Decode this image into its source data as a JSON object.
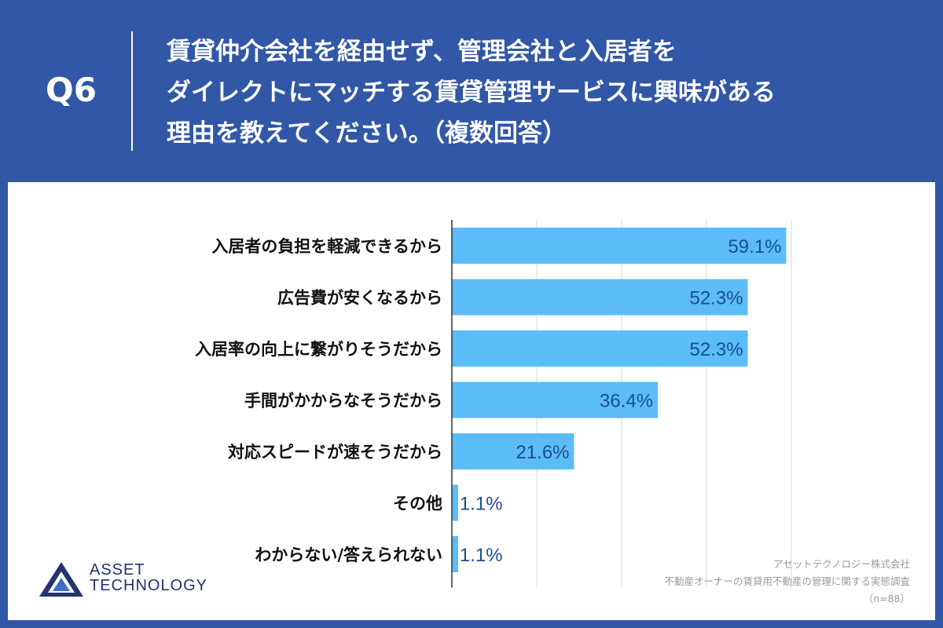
{
  "header": {
    "question_label": "Q6",
    "question_lines": [
      "賃貸仲介会社を経由せず、管理会社と入居者を",
      "ダイレクトにマッチする賃貸管理サービスに興味がある",
      "理由を教えてください。（複数回答）"
    ]
  },
  "colors": {
    "background": "#3157a6",
    "bar": "#5bbcf7",
    "value_text": "#1a4f8c",
    "gridline": "#d9d9d9",
    "axis": "#333333"
  },
  "chart_data": {
    "type": "bar",
    "orientation": "horizontal",
    "title": "",
    "xlabel": "",
    "ylabel": "",
    "xlim": [
      0,
      100
    ],
    "grid": true,
    "categories": [
      "入居者の負担を軽減できるから",
      "広告費が安くなるから",
      "入居率の向上に繋がりそうだから",
      "手間がかからなそうだから",
      "対応スピードが速そうだから",
      "その他",
      "わからない/答えられない"
    ],
    "values": [
      59.1,
      52.3,
      52.3,
      36.4,
      21.6,
      1.1,
      1.1
    ],
    "value_labels": [
      "59.1%",
      "52.3%",
      "52.3%",
      "36.4%",
      "21.6%",
      "1.1%",
      "1.1%"
    ]
  },
  "logo": {
    "line1": "ASSET",
    "line2": "TECHNOLOGY",
    "icon": "triangle-logo-icon"
  },
  "credit": {
    "company": "アセットテクノロジー株式会社",
    "survey": "不動産オーナーの賃貸用不動産の管理に関する実態調査",
    "sample": "（n=88）"
  }
}
